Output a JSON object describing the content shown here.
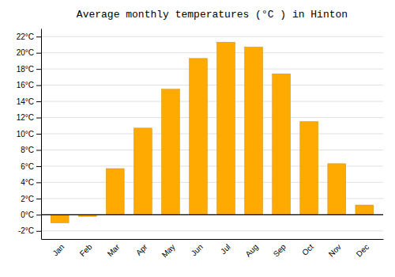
{
  "chart_data": {
    "type": "bar",
    "title": "Average monthly temperatures (°C ) in Hinton",
    "categories": [
      "Jan",
      "Feb",
      "Mar",
      "Apr",
      "May",
      "Jun",
      "Jul",
      "Aug",
      "Sep",
      "Oct",
      "Nov",
      "Dec"
    ],
    "values": [
      -1.0,
      -0.2,
      5.7,
      10.7,
      15.5,
      19.3,
      21.3,
      20.7,
      17.4,
      11.5,
      6.3,
      1.2
    ],
    "color": "#FFAA00",
    "ylim": [
      -3,
      23
    ],
    "yticks": [
      {
        "value": -2,
        "label": "-2°C"
      },
      {
        "value": 0,
        "label": "0°C"
      },
      {
        "value": 2,
        "label": "2°C"
      },
      {
        "value": 4,
        "label": "4°C"
      },
      {
        "value": 6,
        "label": "6°C"
      },
      {
        "value": 8,
        "label": "8°C"
      },
      {
        "value": 10,
        "label": "10°C"
      },
      {
        "value": 12,
        "label": "12°C"
      },
      {
        "value": 14,
        "label": "14°C"
      },
      {
        "value": 16,
        "label": "16°C"
      },
      {
        "value": 18,
        "label": "18°C"
      },
      {
        "value": 20,
        "label": "20°C"
      },
      {
        "value": 22,
        "label": "22°C"
      }
    ],
    "grid": true
  }
}
